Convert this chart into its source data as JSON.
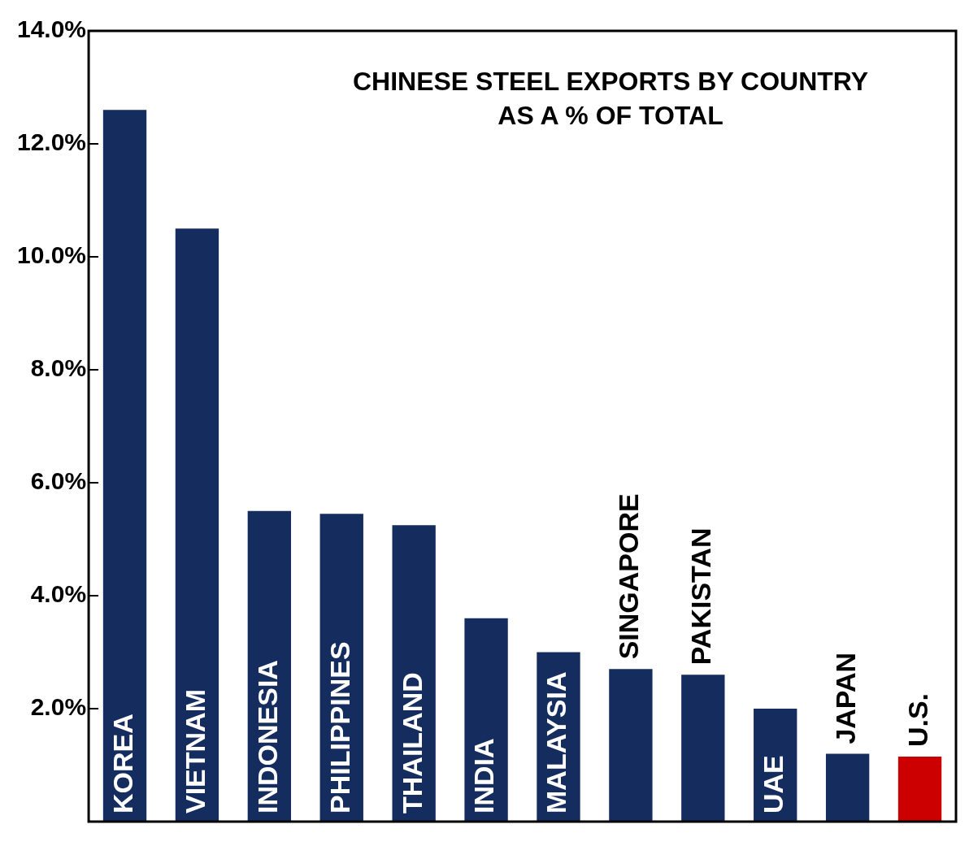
{
  "chart_data": {
    "type": "bar",
    "title": "CHINESE STEEL EXPORTS BY COUNTRY\nAS A % OF TOTAL",
    "categories": [
      "KOREA",
      "VIETNAM",
      "INDONESIA",
      "PHILIPPINES",
      "THAILAND",
      "INDIA",
      "MALAYSIA",
      "SINGAPORE",
      "PAKISTAN",
      "UAE",
      "JAPAN",
      "U.S."
    ],
    "values": [
      12.6,
      10.5,
      5.5,
      5.45,
      5.25,
      3.6,
      3.0,
      2.7,
      2.6,
      2.0,
      1.2,
      1.15
    ],
    "colors": [
      "#142d5e",
      "#142d5e",
      "#142d5e",
      "#142d5e",
      "#142d5e",
      "#142d5e",
      "#142d5e",
      "#142d5e",
      "#142d5e",
      "#142d5e",
      "#142d5e",
      "#cc0000"
    ],
    "ylim": [
      0,
      14
    ],
    "yticks": [
      {
        "value": 0,
        "label": null
      },
      {
        "value": 2,
        "label": "2.0%"
      },
      {
        "value": 4,
        "label": "4.0%"
      },
      {
        "value": 6,
        "label": "6.0%"
      },
      {
        "value": 8,
        "label": "8.0%"
      },
      {
        "value": 10,
        "label": "10.0%"
      },
      {
        "value": 12,
        "label": "12.0%"
      },
      {
        "value": 14,
        "label": "14.0%"
      }
    ],
    "grid": false,
    "legend": false
  }
}
